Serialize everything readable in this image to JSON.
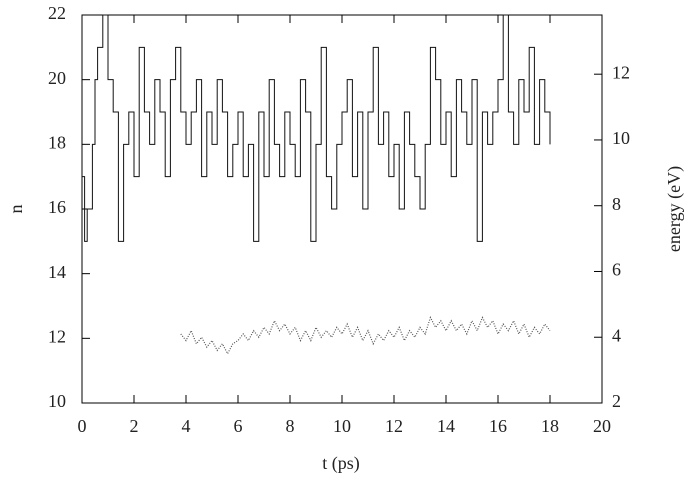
{
  "chart_data": {
    "type": "line",
    "xlabel": "t (ps)",
    "ylabel": "n",
    "y2label": "energy (eV)",
    "xlim": [
      0,
      20
    ],
    "xticks": [
      0,
      2,
      4,
      6,
      8,
      10,
      12,
      14,
      16,
      18,
      20
    ],
    "ylim": [
      10,
      22
    ],
    "yticks": [
      10,
      12,
      14,
      16,
      18,
      20,
      22
    ],
    "y2lim": [
      2,
      13.8
    ],
    "y2ticks": [
      2,
      4,
      6,
      8,
      10,
      12
    ],
    "series": [
      {
        "color": "#111111",
        "step": true,
        "x": [
          0.0,
          0.1,
          0.2,
          0.4,
          0.5,
          0.6,
          0.8,
          1.0,
          1.2,
          1.4,
          1.6,
          1.8,
          2.0,
          2.2,
          2.4,
          2.6,
          2.8,
          3.0,
          3.2,
          3.4,
          3.6,
          3.8,
          4.0,
          4.2,
          4.4,
          4.6,
          4.8,
          5.0,
          5.2,
          5.4,
          5.6,
          5.8,
          6.0,
          6.2,
          6.4,
          6.6,
          6.8,
          7.0,
          7.2,
          7.4,
          7.6,
          7.8,
          8.0,
          8.2,
          8.4,
          8.6,
          8.8,
          9.0,
          9.2,
          9.4,
          9.6,
          9.8,
          10.0,
          10.2,
          10.4,
          10.6,
          10.8,
          11.0,
          11.2,
          11.4,
          11.6,
          11.8,
          12.0,
          12.2,
          12.4,
          12.6,
          12.8,
          13.0,
          13.2,
          13.4,
          13.6,
          13.8,
          14.0,
          14.2,
          14.4,
          14.6,
          14.8,
          15.0,
          15.2,
          15.4,
          15.6,
          15.8,
          16.0,
          16.2,
          16.4,
          16.6,
          16.8,
          17.0,
          17.2,
          17.4,
          17.6,
          17.8,
          18.0
        ],
        "values": [
          17,
          15,
          16,
          18,
          20,
          21,
          22,
          20,
          19,
          15,
          18,
          19,
          17,
          21,
          19,
          18,
          20,
          19,
          17,
          20,
          21,
          19,
          18,
          19,
          20,
          17,
          19,
          18,
          20,
          19,
          17,
          18,
          19,
          17,
          18,
          15,
          19,
          17,
          20,
          18,
          17,
          19,
          18,
          17,
          20,
          19,
          15,
          18,
          21,
          17,
          16,
          18,
          19,
          20,
          17,
          19,
          16,
          19,
          21,
          18,
          19,
          17,
          18,
          16,
          19,
          18,
          17,
          16,
          18,
          21,
          20,
          18,
          19,
          17,
          20,
          19,
          18,
          20,
          15,
          19,
          18,
          19,
          20,
          22,
          19,
          18,
          20,
          19,
          21,
          18,
          20,
          19,
          18
        ]
      },
      {
        "color": "#555555",
        "axis": "y2",
        "dotted": true,
        "x": [
          3.8,
          4.0,
          4.2,
          4.4,
          4.6,
          4.8,
          5.0,
          5.2,
          5.4,
          5.6,
          5.8,
          6.0,
          6.2,
          6.4,
          6.6,
          6.8,
          7.0,
          7.2,
          7.4,
          7.6,
          7.8,
          8.0,
          8.2,
          8.4,
          8.6,
          8.8,
          9.0,
          9.2,
          9.4,
          9.6,
          9.8,
          10.0,
          10.2,
          10.4,
          10.6,
          10.8,
          11.0,
          11.2,
          11.4,
          11.6,
          11.8,
          12.0,
          12.2,
          12.4,
          12.6,
          12.8,
          13.0,
          13.2,
          13.4,
          13.6,
          13.8,
          14.0,
          14.2,
          14.4,
          14.6,
          14.8,
          15.0,
          15.2,
          15.4,
          15.6,
          15.8,
          16.0,
          16.2,
          16.4,
          16.6,
          16.8,
          17.0,
          17.2,
          17.4,
          17.6,
          17.8,
          18.0
        ],
        "values": [
          4.1,
          3.9,
          4.2,
          3.8,
          4.0,
          3.7,
          3.9,
          3.6,
          3.8,
          3.5,
          3.8,
          3.9,
          4.1,
          3.9,
          4.2,
          4.0,
          4.3,
          4.1,
          4.5,
          4.2,
          4.4,
          4.1,
          4.3,
          3.9,
          4.2,
          3.9,
          4.3,
          4.0,
          4.2,
          4.0,
          4.3,
          4.1,
          4.4,
          4.0,
          4.3,
          3.9,
          4.2,
          3.8,
          4.1,
          3.9,
          4.2,
          4.0,
          4.3,
          3.9,
          4.2,
          4.0,
          4.3,
          4.1,
          4.6,
          4.3,
          4.5,
          4.2,
          4.5,
          4.2,
          4.4,
          4.1,
          4.5,
          4.2,
          4.6,
          4.3,
          4.5,
          4.1,
          4.4,
          4.2,
          4.5,
          4.1,
          4.4,
          4.0,
          4.3,
          4.1,
          4.4,
          4.2
        ]
      }
    ]
  }
}
